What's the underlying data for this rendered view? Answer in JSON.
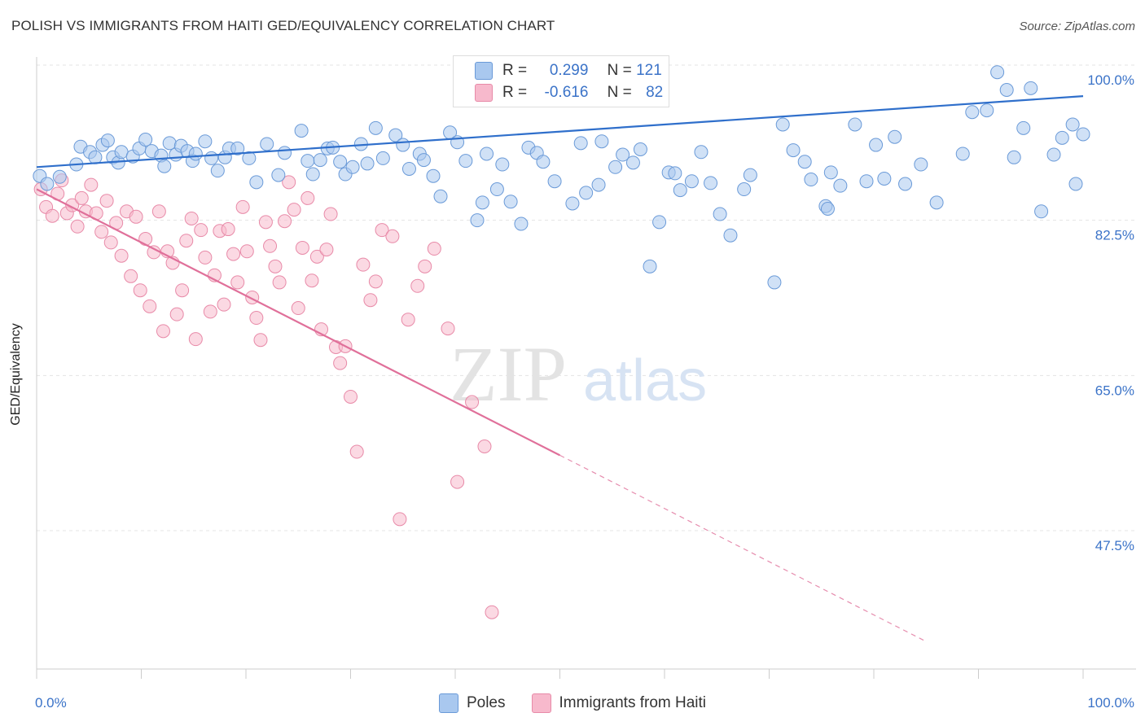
{
  "title": "POLISH VS IMMIGRANTS FROM HAITI GED/EQUIVALENCY CORRELATION CHART",
  "source": "Source: ZipAtlas.com",
  "watermark": {
    "zip": "ZIP",
    "atlas": "atlas"
  },
  "legend": {
    "stats": [
      {
        "r_label": "R =",
        "r_value": "0.299",
        "n_label": "N =",
        "n_value": "121"
      },
      {
        "r_label": "R =",
        "r_value": "-0.616",
        "n_label": "N =",
        "n_value": "82"
      }
    ],
    "bottom": [
      "Poles",
      "Immigrants from Haiti"
    ]
  },
  "colors": {
    "poles_fill": "#a9c8ef",
    "poles_stroke": "#6a9ad8",
    "poles_line": "#2f6fcb",
    "haiti_fill": "#f7b9cc",
    "haiti_stroke": "#e88aa8",
    "haiti_line": "#e0709a",
    "tick_label": "#3b73c8",
    "grid": "#e4e4e4"
  },
  "chart_data": {
    "type": "scatter",
    "xlabel": "",
    "ylabel": "GED/Equivalency",
    "xlim": [
      0,
      100
    ],
    "ylim": [
      30,
      100
    ],
    "x_tick_labels": [
      "0.0%",
      "100.0%"
    ],
    "y_ticks": [
      47.5,
      65.0,
      82.5,
      100.0
    ],
    "y_tick_labels": [
      "47.5%",
      "65.0%",
      "82.5%",
      "100.0%"
    ],
    "grid": true,
    "legend_position": "top-center",
    "series": [
      {
        "name": "Poles",
        "r": 0.299,
        "n": 121,
        "trend": {
          "x": [
            0,
            100
          ],
          "y": [
            88.5,
            96.5
          ]
        },
        "points": [
          [
            2.2,
            87.4
          ],
          [
            3.8,
            88.8
          ],
          [
            4.2,
            90.8
          ],
          [
            5.1,
            90.2
          ],
          [
            5.6,
            89.6
          ],
          [
            6.3,
            91.0
          ],
          [
            6.8,
            91.5
          ],
          [
            7.3,
            89.6
          ],
          [
            7.8,
            89.0
          ],
          [
            8.1,
            90.2
          ],
          [
            9.2,
            89.7
          ],
          [
            9.8,
            90.6
          ],
          [
            10.4,
            91.6
          ],
          [
            11.0,
            90.3
          ],
          [
            11.9,
            89.8
          ],
          [
            12.2,
            88.6
          ],
          [
            12.7,
            91.2
          ],
          [
            13.3,
            89.9
          ],
          [
            13.8,
            90.9
          ],
          [
            14.4,
            90.3
          ],
          [
            14.9,
            89.2
          ],
          [
            15.2,
            90.0
          ],
          [
            16.1,
            91.4
          ],
          [
            16.7,
            89.5
          ],
          [
            17.3,
            88.1
          ],
          [
            18.0,
            89.6
          ],
          [
            18.4,
            90.6
          ],
          [
            19.2,
            90.6
          ],
          [
            20.3,
            89.5
          ],
          [
            21.0,
            86.8
          ],
          [
            22.0,
            91.1
          ],
          [
            23.1,
            87.6
          ],
          [
            23.7,
            90.1
          ],
          [
            25.3,
            92.6
          ],
          [
            25.9,
            89.2
          ],
          [
            26.4,
            87.7
          ],
          [
            27.1,
            89.3
          ],
          [
            27.8,
            90.6
          ],
          [
            28.3,
            90.7
          ],
          [
            29.0,
            89.1
          ],
          [
            29.5,
            87.7
          ],
          [
            30.2,
            88.5
          ],
          [
            31.0,
            91.1
          ],
          [
            31.6,
            88.9
          ],
          [
            32.4,
            92.9
          ],
          [
            33.1,
            89.5
          ],
          [
            34.3,
            92.1
          ],
          [
            35.0,
            91.0
          ],
          [
            35.6,
            88.3
          ],
          [
            36.6,
            90.0
          ],
          [
            37.0,
            89.3
          ],
          [
            37.9,
            87.5
          ],
          [
            38.6,
            85.2
          ],
          [
            39.5,
            92.4
          ],
          [
            40.2,
            91.3
          ],
          [
            41.0,
            89.2
          ],
          [
            42.1,
            82.5
          ],
          [
            42.6,
            84.5
          ],
          [
            43.0,
            90.0
          ],
          [
            44.0,
            86.0
          ],
          [
            44.5,
            88.8
          ],
          [
            45.3,
            84.6
          ],
          [
            46.3,
            82.1
          ],
          [
            47.0,
            90.7
          ],
          [
            47.8,
            90.1
          ],
          [
            48.4,
            89.1
          ],
          [
            49.5,
            86.9
          ],
          [
            51.2,
            84.4
          ],
          [
            52.0,
            91.2
          ],
          [
            52.5,
            85.6
          ],
          [
            53.7,
            86.5
          ],
          [
            54.0,
            91.4
          ],
          [
            55.3,
            88.5
          ],
          [
            56.0,
            89.9
          ],
          [
            57.0,
            89.0
          ],
          [
            57.7,
            90.5
          ],
          [
            58.6,
            77.3
          ],
          [
            59.5,
            82.3
          ],
          [
            60.4,
            87.9
          ],
          [
            61.0,
            87.8
          ],
          [
            61.5,
            85.9
          ],
          [
            62.6,
            86.9
          ],
          [
            63.5,
            90.2
          ],
          [
            64.4,
            86.7
          ],
          [
            65.3,
            83.2
          ],
          [
            66.3,
            80.8
          ],
          [
            67.6,
            86.0
          ],
          [
            68.2,
            87.6
          ],
          [
            70.5,
            75.5
          ],
          [
            71.3,
            93.3
          ],
          [
            72.3,
            90.4
          ],
          [
            73.4,
            89.1
          ],
          [
            74.0,
            87.1
          ],
          [
            75.4,
            84.1
          ],
          [
            75.6,
            83.8
          ],
          [
            75.9,
            87.9
          ],
          [
            76.8,
            86.4
          ],
          [
            78.2,
            93.3
          ],
          [
            79.3,
            86.9
          ],
          [
            80.2,
            91.0
          ],
          [
            81.0,
            87.2
          ],
          [
            82.0,
            91.9
          ],
          [
            83.0,
            86.6
          ],
          [
            84.5,
            88.8
          ],
          [
            86.0,
            84.5
          ],
          [
            88.5,
            90.0
          ],
          [
            89.4,
            94.7
          ],
          [
            90.8,
            94.9
          ],
          [
            91.8,
            99.2
          ],
          [
            92.7,
            97.2
          ],
          [
            93.4,
            89.6
          ],
          [
            94.3,
            92.9
          ],
          [
            95.0,
            97.4
          ],
          [
            96.0,
            83.5
          ],
          [
            97.2,
            89.9
          ],
          [
            98.0,
            91.8
          ],
          [
            99.0,
            93.3
          ],
          [
            99.3,
            86.6
          ],
          [
            100.0,
            92.2
          ],
          [
            0.3,
            87.5
          ],
          [
            1.0,
            86.6
          ]
        ]
      },
      {
        "name": "Immigrants from Haiti",
        "r": -0.616,
        "n": 82,
        "trend": {
          "x": [
            0,
            50
          ],
          "y": [
            86.0,
            56.0
          ]
        },
        "trend_extension": {
          "x": [
            50,
            100
          ],
          "y": [
            56.0,
            26.0
          ]
        },
        "points": [
          [
            0.4,
            86.0
          ],
          [
            0.9,
            84.0
          ],
          [
            1.5,
            83.0
          ],
          [
            2.0,
            85.5
          ],
          [
            2.4,
            87.0
          ],
          [
            2.9,
            83.3
          ],
          [
            3.4,
            84.2
          ],
          [
            3.9,
            81.8
          ],
          [
            4.3,
            85.0
          ],
          [
            4.7,
            83.5
          ],
          [
            5.2,
            86.5
          ],
          [
            5.7,
            83.3
          ],
          [
            6.2,
            81.2
          ],
          [
            6.7,
            84.7
          ],
          [
            7.1,
            80.0
          ],
          [
            7.6,
            82.2
          ],
          [
            8.1,
            78.5
          ],
          [
            8.6,
            83.5
          ],
          [
            9.0,
            76.2
          ],
          [
            9.5,
            82.9
          ],
          [
            9.9,
            74.6
          ],
          [
            10.4,
            80.4
          ],
          [
            10.8,
            72.8
          ],
          [
            11.2,
            78.9
          ],
          [
            11.7,
            83.5
          ],
          [
            12.1,
            70.0
          ],
          [
            12.5,
            79.0
          ],
          [
            13.0,
            77.7
          ],
          [
            13.4,
            71.9
          ],
          [
            13.9,
            74.6
          ],
          [
            14.3,
            80.2
          ],
          [
            14.8,
            82.7
          ],
          [
            15.2,
            69.1
          ],
          [
            15.7,
            81.4
          ],
          [
            16.1,
            78.3
          ],
          [
            16.6,
            72.2
          ],
          [
            17.0,
            76.3
          ],
          [
            17.5,
            81.3
          ],
          [
            17.9,
            73.0
          ],
          [
            18.3,
            81.5
          ],
          [
            18.8,
            78.7
          ],
          [
            19.2,
            75.5
          ],
          [
            19.7,
            84.0
          ],
          [
            20.1,
            79.0
          ],
          [
            20.6,
            73.8
          ],
          [
            21.0,
            71.5
          ],
          [
            21.4,
            69.0
          ],
          [
            21.9,
            82.3
          ],
          [
            22.3,
            79.6
          ],
          [
            22.8,
            77.3
          ],
          [
            23.2,
            75.5
          ],
          [
            23.7,
            82.4
          ],
          [
            24.1,
            86.8
          ],
          [
            24.6,
            83.7
          ],
          [
            25.0,
            72.6
          ],
          [
            25.4,
            79.4
          ],
          [
            25.9,
            85.0
          ],
          [
            26.3,
            75.7
          ],
          [
            26.8,
            78.4
          ],
          [
            27.2,
            70.2
          ],
          [
            27.7,
            79.2
          ],
          [
            28.1,
            83.2
          ],
          [
            28.6,
            68.2
          ],
          [
            29.0,
            66.4
          ],
          [
            29.5,
            68.3
          ],
          [
            30.0,
            62.6
          ],
          [
            30.6,
            56.4
          ],
          [
            31.2,
            77.5
          ],
          [
            31.9,
            73.5
          ],
          [
            32.4,
            75.6
          ],
          [
            33.0,
            81.4
          ],
          [
            34.0,
            80.7
          ],
          [
            34.7,
            48.8
          ],
          [
            35.5,
            71.3
          ],
          [
            36.4,
            75.1
          ],
          [
            37.1,
            77.3
          ],
          [
            38.0,
            79.3
          ],
          [
            39.3,
            70.3
          ],
          [
            40.2,
            53.0
          ],
          [
            41.6,
            62.0
          ],
          [
            42.8,
            57.0
          ],
          [
            43.5,
            38.3
          ]
        ]
      }
    ]
  }
}
